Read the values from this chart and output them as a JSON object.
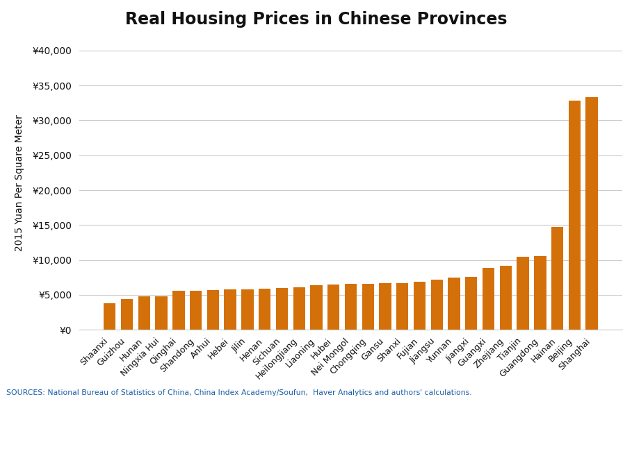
{
  "title": "Real Housing Prices in Chinese Provinces",
  "ylabel": "2015 Yuan Per Square Meter",
  "bar_color": "#D4700A",
  "background_color": "#FFFFFF",
  "footer_bg_color": "#1B3A5C",
  "source_text": "SOURCES: National Bureau of Statistics of China, China Index Academy/Soufun,  Haver Analytics and authors' calculations.",
  "categories": [
    "Shaanxi",
    "Guizhou",
    "Hunan",
    "Ningxia Hui",
    "Qinghai",
    "Shandong",
    "Anhui",
    "Hebei",
    "Jilin",
    "Henan",
    "Sichuan",
    "Heilongjiang",
    "Liaoning",
    "Hubei",
    "Nei Mongol",
    "Chongqing",
    "Gansu",
    "Shanxi",
    "Fujian",
    "Jiangsu",
    "Yunnan",
    "Jiangxi",
    "Guangxi",
    "Zhejiang",
    "Tianjin",
    "Guangdong",
    "Hainan",
    "Beijing",
    "Shanghai"
  ],
  "values": [
    3800,
    4400,
    4750,
    4800,
    5550,
    5600,
    5700,
    5750,
    5800,
    5900,
    5950,
    6100,
    6400,
    6500,
    6550,
    6600,
    6650,
    6700,
    6900,
    7200,
    7500,
    7600,
    8900,
    9200,
    10500,
    10600,
    14700,
    32800,
    33300
  ],
  "ylim": [
    0,
    42000
  ],
  "yticks": [
    0,
    5000,
    10000,
    15000,
    20000,
    25000,
    30000,
    35000,
    40000
  ],
  "title_fontsize": 17,
  "ylabel_fontsize": 10,
  "ytick_fontsize": 10,
  "xtick_fontsize": 9
}
